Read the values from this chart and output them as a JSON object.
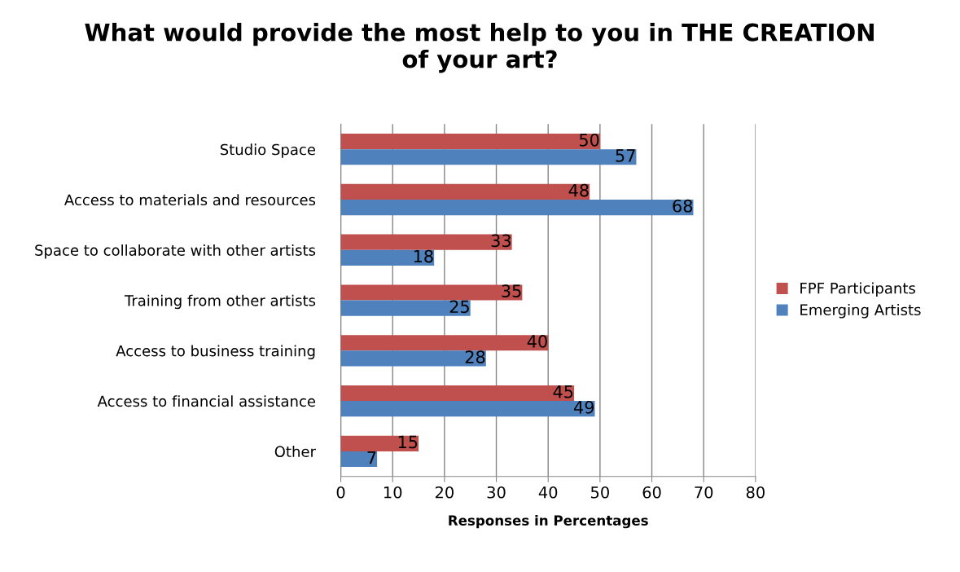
{
  "chart_data": {
    "type": "bar",
    "orientation": "horizontal",
    "title": "What would provide the most help to you in THE CREATION\nof your art?",
    "xlabel": "Responses in Percentages",
    "categories": [
      "Studio Space",
      "Access to materials and resources",
      "Space to collaborate with other artists",
      "Training from other artists",
      "Access to business training",
      "Access to financial assistance",
      "Other"
    ],
    "series": [
      {
        "name": "FPF Participants",
        "color": "#c0504d",
        "values": [
          50,
          48,
          33,
          35,
          40,
          45,
          15
        ]
      },
      {
        "name": "Emerging Artists",
        "color": "#4f81bd",
        "values": [
          57,
          68,
          18,
          25,
          28,
          49,
          7
        ]
      }
    ],
    "xlim": [
      0,
      80
    ],
    "xticks": [
      0,
      10,
      20,
      30,
      40,
      50,
      60,
      70,
      80
    ],
    "grid": "x",
    "legend": "right",
    "data_labels": true
  }
}
